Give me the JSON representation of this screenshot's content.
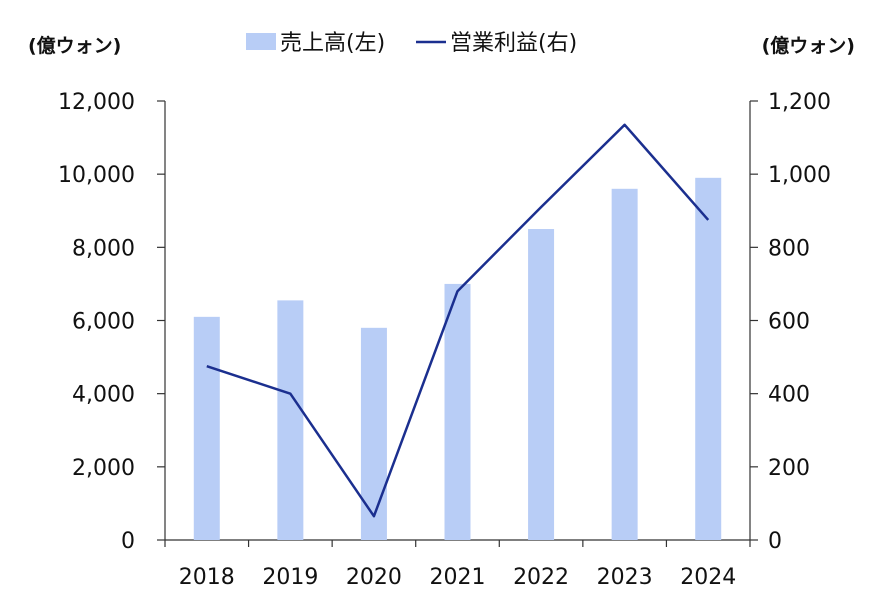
{
  "chart_data": {
    "type": "bar",
    "categories": [
      "2018",
      "2019",
      "2020",
      "2021",
      "2022",
      "2023",
      "2024"
    ],
    "series": [
      {
        "name": "売上高(左)",
        "type": "bar",
        "axis": "left",
        "values": [
          6100,
          6550,
          5800,
          7000,
          8500,
          9600,
          9900
        ]
      },
      {
        "name": "営業利益(右)",
        "type": "line",
        "axis": "right",
        "values": [
          475,
          400,
          65,
          680,
          910,
          1135,
          875
        ]
      }
    ],
    "y_left": {
      "unit": "(億ウォン)",
      "range": [
        0,
        12000
      ],
      "ticks": [
        "0",
        "2,000",
        "4,000",
        "6,000",
        "8,000",
        "10,000",
        "12,000"
      ]
    },
    "y_right": {
      "unit": "(億ウォン)",
      "range": [
        0,
        1200
      ],
      "ticks": [
        "0",
        "200",
        "400",
        "600",
        "800",
        "1,000",
        "1,200"
      ]
    },
    "legend_position": "top-center",
    "grid": false,
    "colors": {
      "bar": "#b8cdf6",
      "line": "#1b2f8f",
      "axis": "#333333"
    }
  }
}
